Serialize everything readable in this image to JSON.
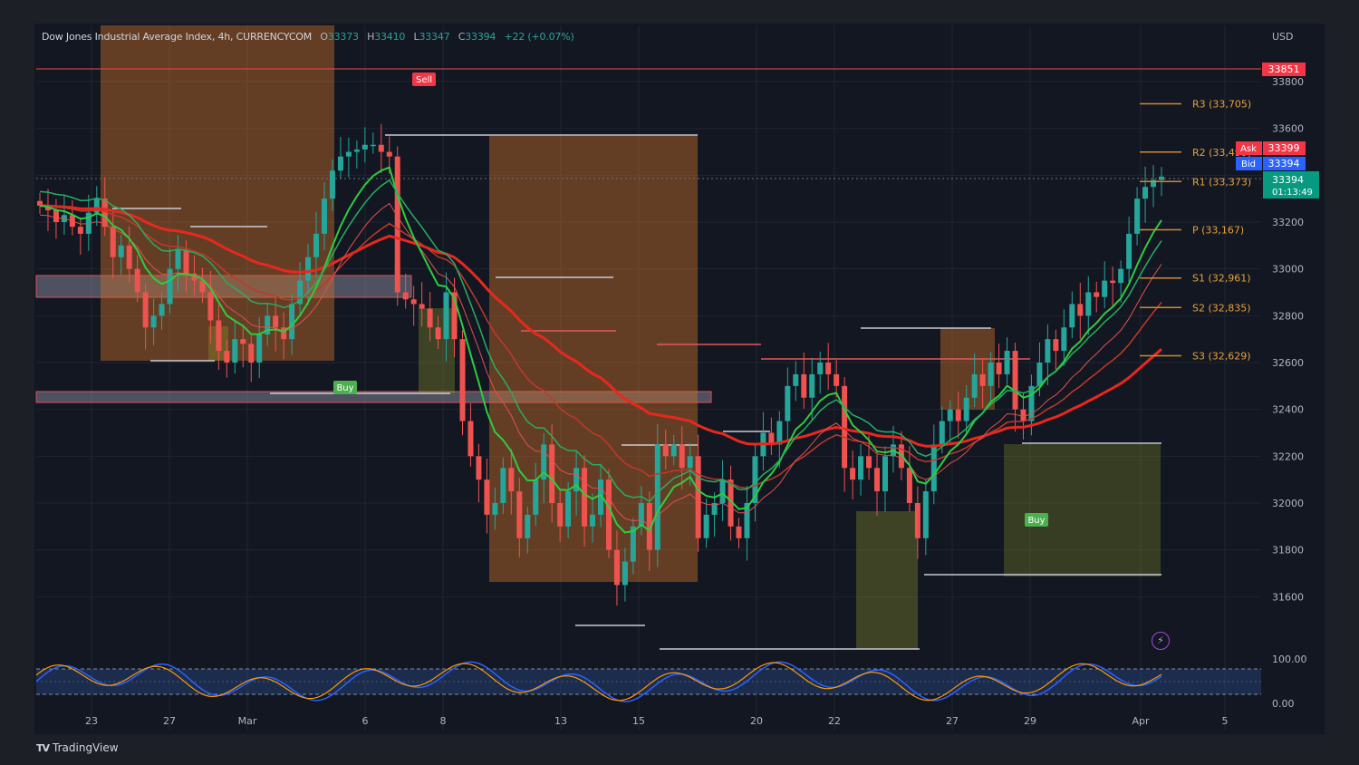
{
  "header": {
    "symbol": "Dow Jones Industrial Average Index, 4h, CURRENCYCOM",
    "o_label": "O",
    "o_value": "33373",
    "h_label": "H",
    "h_value": "33410",
    "l_label": "L",
    "l_value": "33347",
    "c_label": "C",
    "c_value": "33394",
    "change": "+22 (+0.07%)"
  },
  "currency": "USD",
  "brand": "TradingView",
  "chart_data": {
    "type": "candlestick",
    "price_axis": {
      "ylim": [
        31500,
        33900
      ],
      "ticks": [
        33800,
        33600,
        33400,
        33200,
        33000,
        32800,
        32600,
        32400,
        32200,
        32000,
        31800,
        31600
      ]
    },
    "time_axis": {
      "labels": [
        "23",
        "27",
        "Mar",
        "6",
        "8",
        "13",
        "15",
        "20",
        "22",
        "27",
        "29",
        "Apr",
        "5"
      ]
    },
    "last_price": {
      "value": "33394",
      "countdown": "01:13:49",
      "ask_label": "Ask",
      "ask": "33399",
      "bid_label": "Bid",
      "bid": "33394"
    },
    "high_line": {
      "value": "33851"
    },
    "pivots": [
      {
        "label": "R3 (33,705)",
        "value": 33705
      },
      {
        "label": "R2 (33,499)",
        "value": 33499
      },
      {
        "label": "R1 (33,373)",
        "value": 33373
      },
      {
        "label": "P (33,167)",
        "value": 33167
      },
      {
        "label": "S1 (32,961)",
        "value": 32961
      },
      {
        "label": "S2 (32,835)",
        "value": 32835
      },
      {
        "label": "S3 (32,629)",
        "value": 32629
      }
    ],
    "signals": [
      {
        "label": "Sell",
        "type": "sell",
        "t": 0.345
      },
      {
        "label": "Buy",
        "type": "buy",
        "t": 0.277
      },
      {
        "label": "Buy",
        "type": "buy",
        "t": 0.89
      }
    ],
    "closes": [
      33270,
      33250,
      33200,
      33230,
      33180,
      33150,
      33240,
      33300,
      33180,
      33050,
      33100,
      33000,
      32900,
      32750,
      32800,
      32850,
      33000,
      33080,
      32980,
      32950,
      32900,
      32780,
      32650,
      32600,
      32700,
      32680,
      32600,
      32720,
      32800,
      32750,
      32700,
      32850,
      32950,
      33050,
      33150,
      33300,
      33420,
      33480,
      33500,
      33510,
      33530,
      33530,
      33500,
      33480,
      32900,
      32870,
      32850,
      32830,
      32750,
      32700,
      32900,
      32700,
      32350,
      32200,
      32100,
      31950,
      32000,
      32150,
      32050,
      31850,
      31950,
      32100,
      32250,
      32000,
      31900,
      32050,
      32150,
      31900,
      31950,
      32100,
      31800,
      31650,
      31750,
      31900,
      32000,
      31800,
      32250,
      32200,
      32250,
      32150,
      32200,
      31850,
      31950,
      32000,
      32100,
      31900,
      31850,
      32000,
      32200,
      32300,
      32250,
      32350,
      32500,
      32550,
      32450,
      32550,
      32600,
      32550,
      32500,
      32150,
      32100,
      32200,
      32150,
      32050,
      32200,
      32250,
      32150,
      32000,
      31850,
      32050,
      32250,
      32350,
      32400,
      32350,
      32450,
      32550,
      32500,
      32600,
      32550,
      32650,
      32400,
      32350,
      32500,
      32600,
      32700,
      32650,
      32750,
      32850,
      32800,
      32900,
      32880,
      32950,
      32940,
      33000,
      33150,
      33300,
      33350,
      33380,
      33394
    ],
    "oscillator": {
      "levels": [
        "100.00",
        "0.00"
      ]
    }
  }
}
